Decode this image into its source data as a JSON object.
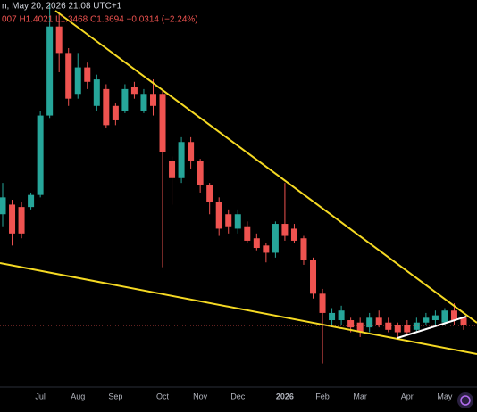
{
  "chart_data": {
    "type": "candlestick",
    "header_time": "n, May 20, 2026 21:08 UTC+1",
    "header_ohlc": "007 H1.4021 L1.3468 C1.3694 −0.0314 (−2.24%)",
    "categories": [
      null,
      null,
      null,
      null,
      "Jul",
      null,
      null,
      null,
      "Aug",
      null,
      null,
      null,
      "Sep",
      null,
      null,
      null,
      null,
      "Oct",
      null,
      null,
      null,
      "Nov",
      null,
      null,
      null,
      "Dec",
      null,
      null,
      null,
      null,
      "2026",
      null,
      null,
      null,
      "Feb",
      null,
      null,
      null,
      "Mar",
      null,
      null,
      null,
      null,
      "Apr",
      null,
      null,
      null,
      "May",
      null,
      null
    ],
    "open": [
      1.83,
      1.87,
      1.86,
      1.86,
      1.91,
      2.24,
      2.61,
      2.5,
      2.33,
      2.44,
      2.28,
      2.35,
      2.28,
      2.26,
      2.36,
      2.26,
      2.33,
      2.33,
      2.05,
      1.98,
      2.13,
      2.05,
      1.95,
      1.88,
      1.83,
      1.77,
      1.78,
      1.73,
      1.7,
      1.67,
      1.79,
      1.77,
      1.73,
      1.64,
      1.5,
      1.39,
      1.39,
      1.39,
      1.38,
      1.36,
      1.4,
      1.38,
      1.37,
      1.37,
      1.35,
      1.38,
      1.39,
      1.38,
      1.43,
      1.4
    ],
    "high": [
      1.96,
      1.89,
      1.88,
      1.92,
      2.26,
      2.7,
      2.66,
      2.52,
      2.5,
      2.46,
      2.41,
      2.37,
      2.29,
      2.37,
      2.38,
      2.35,
      2.39,
      2.35,
      2.07,
      2.15,
      2.15,
      2.06,
      1.96,
      1.9,
      1.85,
      1.85,
      1.8,
      1.75,
      1.71,
      1.8,
      1.96,
      1.79,
      1.74,
      1.65,
      1.52,
      1.44,
      1.45,
      1.4,
      1.4,
      1.42,
      1.43,
      1.4,
      1.38,
      1.39,
      1.4,
      1.42,
      1.43,
      1.44,
      1.46,
      1.4
    ],
    "low": [
      1.78,
      1.7,
      1.73,
      1.85,
      1.9,
      2.23,
      2.42,
      2.28,
      2.31,
      2.35,
      2.26,
      2.19,
      2.2,
      2.25,
      2.31,
      2.25,
      2.24,
      1.61,
      1.87,
      1.96,
      2.02,
      1.92,
      1.83,
      1.74,
      1.75,
      1.75,
      1.71,
      1.68,
      1.63,
      1.65,
      1.72,
      1.71,
      1.62,
      1.48,
      1.21,
      1.37,
      1.37,
      1.34,
      1.32,
      1.34,
      1.36,
      1.34,
      1.32,
      1.33,
      1.34,
      1.37,
      1.37,
      1.37,
      1.37,
      1.35
    ],
    "close": [
      1.9,
      1.75,
      1.75,
      1.91,
      2.24,
      2.61,
      2.5,
      2.31,
      2.44,
      2.38,
      2.39,
      2.2,
      2.22,
      2.35,
      2.33,
      2.33,
      2.28,
      2.09,
      1.98,
      2.13,
      2.05,
      1.95,
      1.88,
      1.77,
      1.78,
      1.83,
      1.72,
      1.69,
      1.67,
      1.79,
      1.74,
      1.72,
      1.64,
      1.5,
      1.42,
      1.42,
      1.43,
      1.36,
      1.34,
      1.4,
      1.37,
      1.35,
      1.34,
      1.34,
      1.38,
      1.4,
      1.41,
      1.43,
      1.39,
      1.37
    ],
    "ylim": [
      1.09,
      2.72
    ],
    "up_color": "#26a69a",
    "down_color": "#ef5350"
  }
}
